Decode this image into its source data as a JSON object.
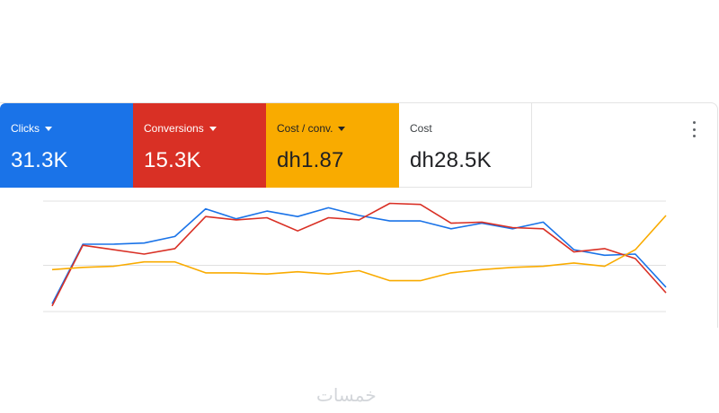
{
  "metrics": {
    "clicks": {
      "label": "Clicks",
      "value": "31.3K",
      "color": "#1a73e8"
    },
    "conversions": {
      "label": "Conversions",
      "value": "15.3K",
      "color": "#d93025"
    },
    "cost_per_conv": {
      "label": "Cost / conv.",
      "value": "dh1.87",
      "color": "#f9ab00"
    },
    "cost": {
      "label": "Cost",
      "value": "dh28.5K"
    }
  },
  "icons": {
    "more": "more-vert-icon",
    "dropdown": "caret-down-icon"
  },
  "watermark": "خمسات",
  "chart_data": {
    "type": "line",
    "x": [
      0,
      1,
      2,
      3,
      4,
      5,
      6,
      7,
      8,
      9,
      10,
      11,
      12,
      13,
      14,
      15,
      16,
      17,
      18,
      19,
      20
    ],
    "ylim": [
      0,
      100
    ],
    "grid": true,
    "series": [
      {
        "name": "Clicks",
        "color": "#1a73e8",
        "values": [
          7,
          61,
          61,
          62,
          68,
          93,
          84,
          91,
          86,
          94,
          87,
          82,
          82,
          75,
          80,
          75,
          81,
          56,
          51,
          52,
          22
        ]
      },
      {
        "name": "Conversions",
        "color": "#d93025",
        "values": [
          5,
          60,
          56,
          52,
          57,
          86,
          83,
          85,
          73,
          85,
          83,
          98,
          97,
          80,
          81,
          76,
          75,
          54,
          57,
          48,
          17
        ]
      },
      {
        "name": "Cost / conv.",
        "color": "#f9ab00",
        "values": [
          38,
          40,
          41,
          45,
          45,
          35,
          35,
          34,
          36,
          34,
          37,
          28,
          28,
          35,
          38,
          40,
          41,
          44,
          41,
          56,
          87
        ]
      }
    ]
  }
}
